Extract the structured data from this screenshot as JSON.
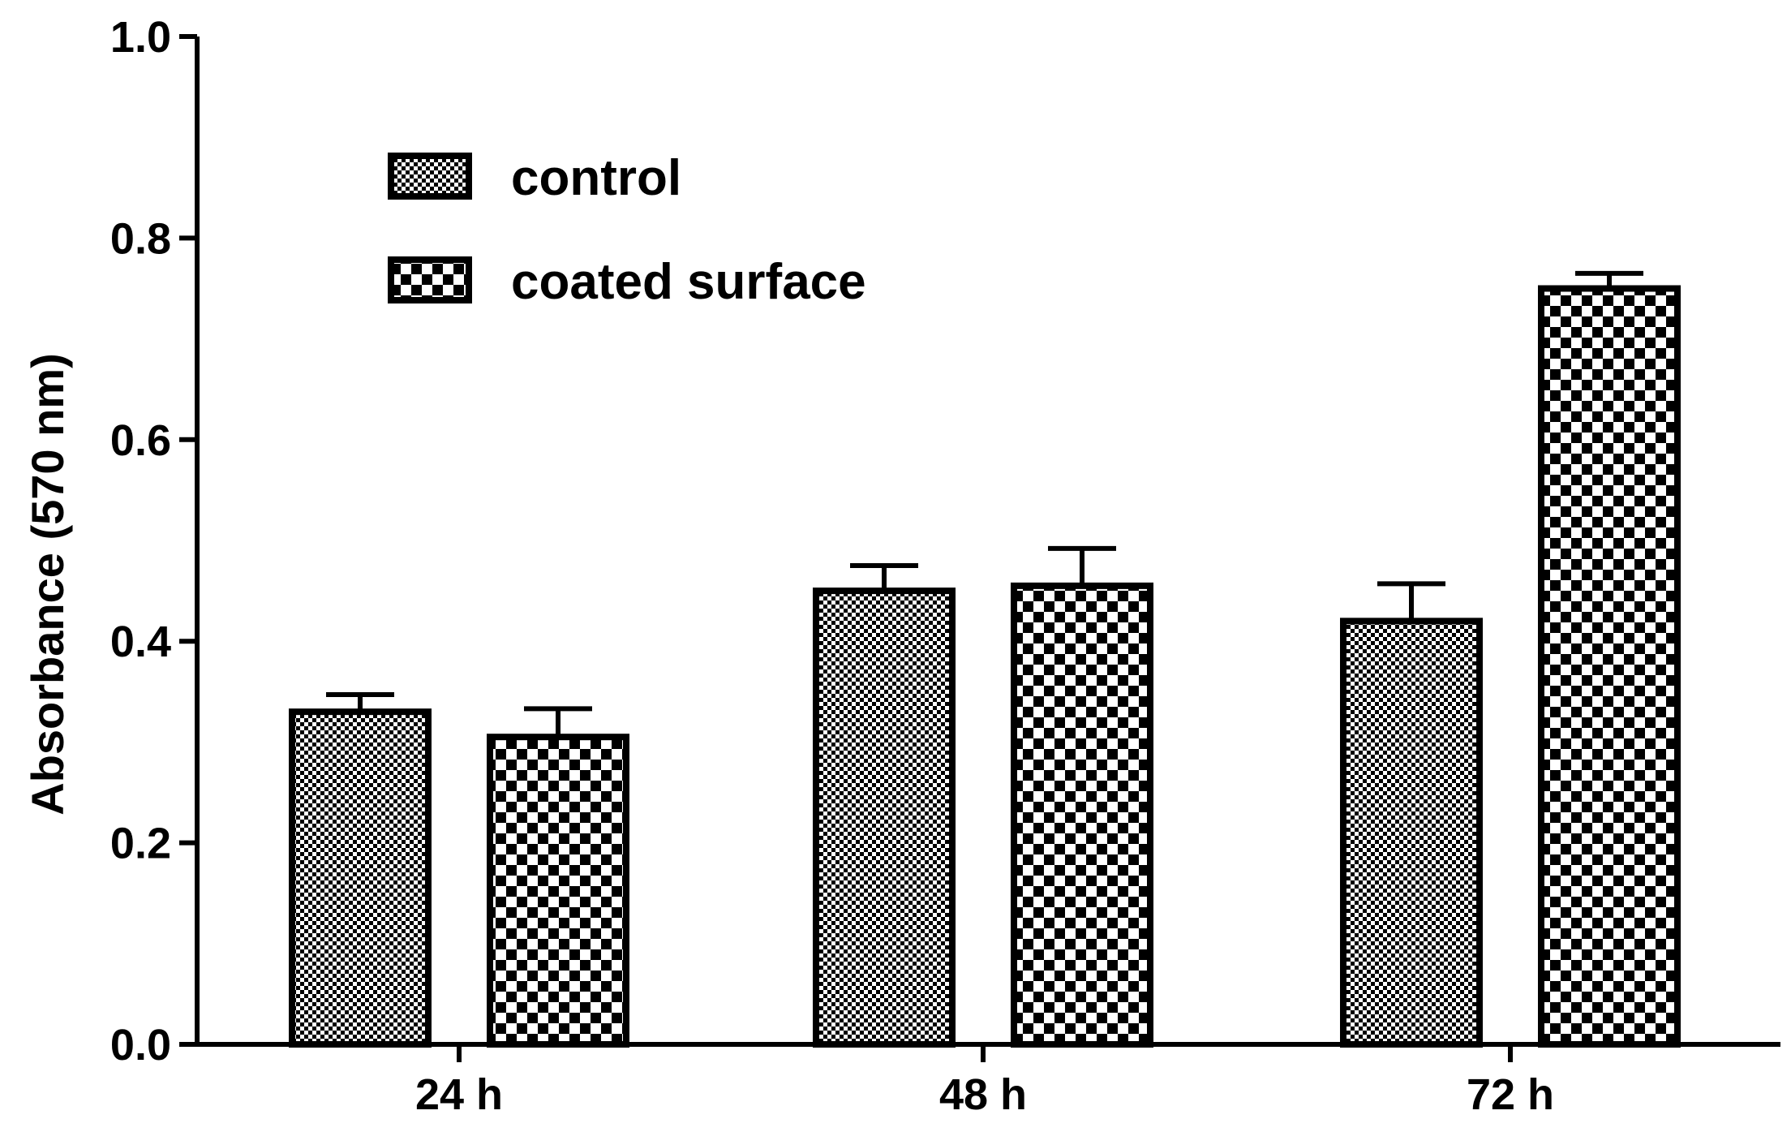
{
  "chart_data": {
    "type": "bar",
    "title": "",
    "xlabel": "",
    "ylabel": "Absorbance (570 nm)",
    "ylim": [
      0,
      1.0
    ],
    "yticks": [
      "0.0",
      "0.2",
      "0.4",
      "0.6",
      "0.8",
      "1.0"
    ],
    "categories": [
      "24 h",
      "48 h",
      "72 h"
    ],
    "series": [
      {
        "name": "control",
        "pattern": "fine-checker",
        "values": [
          0.33,
          0.45,
          0.42
        ],
        "errors": [
          0.017,
          0.025,
          0.037
        ]
      },
      {
        "name": "coated surface",
        "pattern": "coarse-checker",
        "values": [
          0.305,
          0.455,
          0.75
        ],
        "errors": [
          0.028,
          0.037,
          0.015
        ]
      }
    ],
    "legend": {
      "placement": "top-left"
    },
    "grid": false,
    "colors": {
      "bar_border": "#000000",
      "fill_light": "#ffffff"
    }
  }
}
